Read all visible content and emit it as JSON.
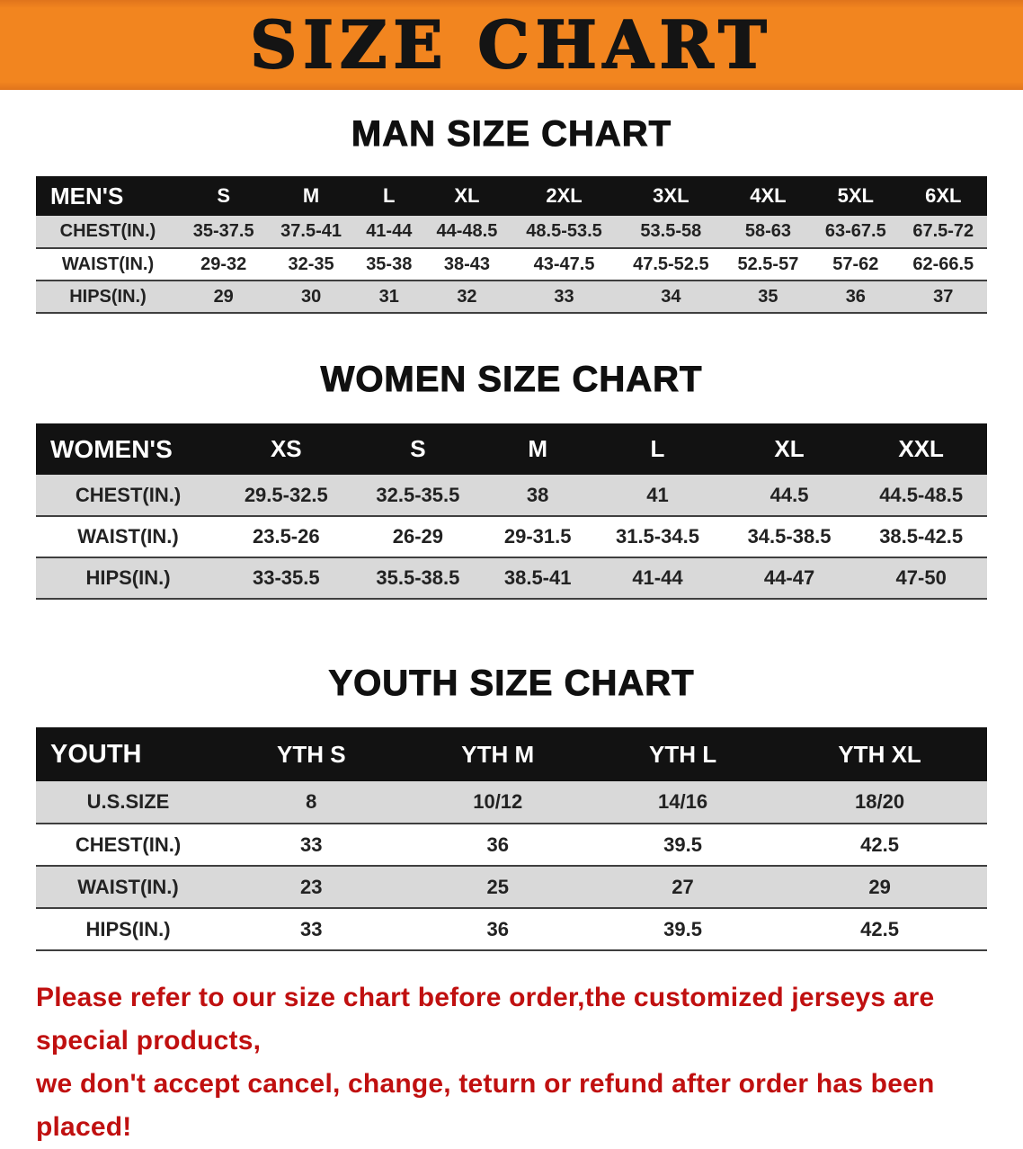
{
  "banner": {
    "title": "SIZE CHART"
  },
  "colors": {
    "banner_orange": "#f2851f",
    "header_black": "#121212",
    "stripe_gray": "#d9d9d9",
    "note_red": "#c01010"
  },
  "sections": [
    {
      "heading": "MAN SIZE CHART",
      "table": {
        "header_label": "MEN'S",
        "columns": [
          "S",
          "M",
          "L",
          "XL",
          "2XL",
          "3XL",
          "4XL",
          "5XL",
          "6XL"
        ],
        "rows": [
          {
            "label": "CHEST(IN.)",
            "values": [
              "35-37.5",
              "37.5-41",
              "41-44",
              "44-48.5",
              "48.5-53.5",
              "53.5-58",
              "58-63",
              "63-67.5",
              "67.5-72"
            ]
          },
          {
            "label": "WAIST(IN.)",
            "values": [
              "29-32",
              "32-35",
              "35-38",
              "38-43",
              "43-47.5",
              "47.5-52.5",
              "52.5-57",
              "57-62",
              "62-66.5"
            ]
          },
          {
            "label": "HIPS(IN.)",
            "values": [
              "29",
              "30",
              "31",
              "32",
              "33",
              "34",
              "35",
              "36",
              "37"
            ]
          }
        ]
      }
    },
    {
      "heading": "WOMEN SIZE CHART",
      "table": {
        "header_label": "WOMEN'S",
        "columns": [
          "XS",
          "S",
          "M",
          "L",
          "XL",
          "XXL"
        ],
        "rows": [
          {
            "label": "CHEST(IN.)",
            "values": [
              "29.5-32.5",
              "32.5-35.5",
              "38",
              "41",
              "44.5",
              "44.5-48.5"
            ]
          },
          {
            "label": "WAIST(IN.)",
            "values": [
              "23.5-26",
              "26-29",
              "29-31.5",
              "31.5-34.5",
              "34.5-38.5",
              "38.5-42.5"
            ]
          },
          {
            "label": "HIPS(IN.)",
            "values": [
              "33-35.5",
              "35.5-38.5",
              "38.5-41",
              "41-44",
              "44-47",
              "47-50"
            ]
          }
        ]
      }
    },
    {
      "heading": "YOUTH SIZE CHART",
      "table": {
        "header_label": "YOUTH",
        "columns": [
          "YTH S",
          "YTH M",
          "YTH L",
          "YTH XL"
        ],
        "rows": [
          {
            "label": "U.S.SIZE",
            "values": [
              "8",
              "10/12",
              "14/16",
              "18/20"
            ]
          },
          {
            "label": "CHEST(IN.)",
            "values": [
              "33",
              "36",
              "39.5",
              "42.5"
            ]
          },
          {
            "label": "WAIST(IN.)",
            "values": [
              "23",
              "25",
              "27",
              "29"
            ]
          },
          {
            "label": "HIPS(IN.)",
            "values": [
              "33",
              "36",
              "39.5",
              "42.5"
            ]
          }
        ]
      }
    }
  ],
  "footer_note": {
    "line1": "Please refer to our size chart before order,the customized jerseys are special products,",
    "line2": "we don't accept cancel, change, teturn or refund after order has been placed!"
  }
}
